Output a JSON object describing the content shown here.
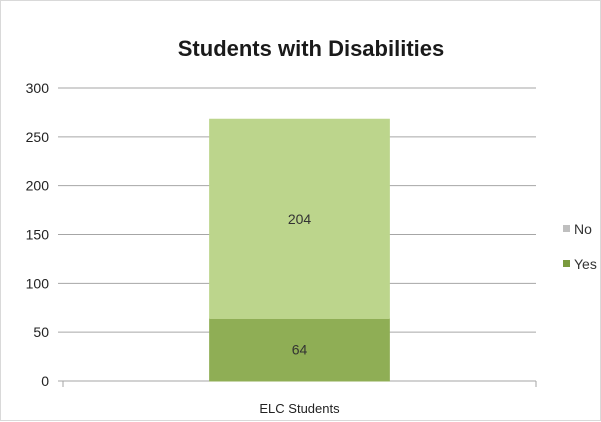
{
  "chart_data": {
    "type": "bar",
    "stacked": true,
    "title": "Students with Disabilities",
    "xlabel": "",
    "ylabel": "",
    "categories": [
      "ELC Students"
    ],
    "series": [
      {
        "name": "Yes",
        "values": [
          64
        ],
        "color": "#8fae55"
      },
      {
        "name": "No",
        "values": [
          204
        ],
        "color": "#bcd58c"
      }
    ],
    "data_labels": [
      "64",
      "204"
    ],
    "ylim": [
      0,
      300
    ],
    "yticks": [
      0,
      50,
      100,
      150,
      200,
      250,
      300
    ],
    "ytick_labels": [
      "0",
      "50",
      "100",
      "150",
      "200",
      "250",
      "300"
    ],
    "grid": true,
    "legend_position": "right",
    "legend": [
      {
        "label": "No",
        "color": "#bfbfbf"
      },
      {
        "label": "Yes",
        "color": "#7a9a3e"
      }
    ],
    "gridline_color": "#a6a6a6"
  }
}
